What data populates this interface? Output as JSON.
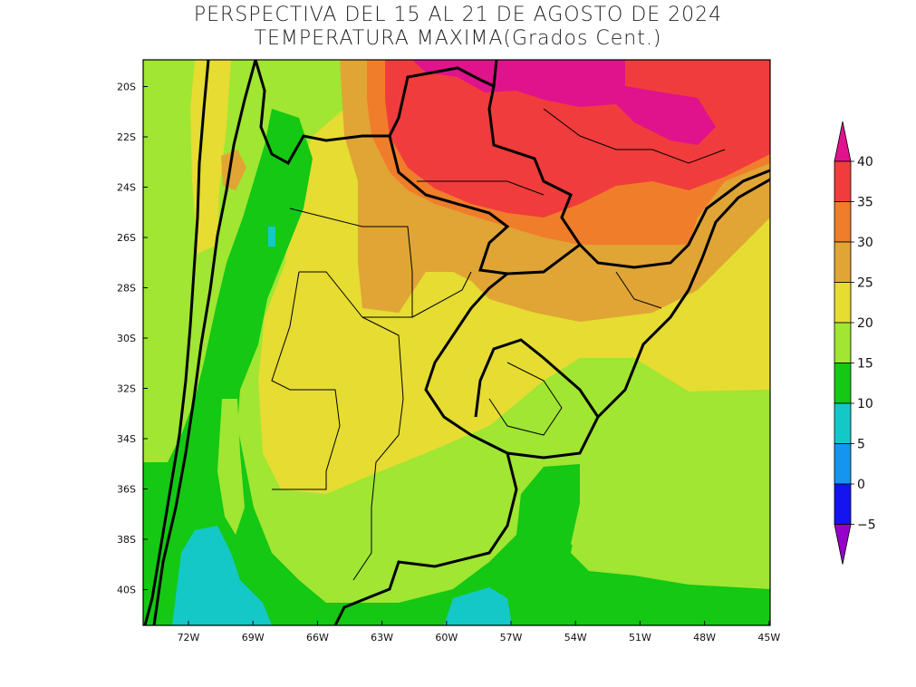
{
  "title": {
    "line1": "PERSPECTIVA DEL 15 AL 21 DE AGOSTO DE 2024",
    "line2": "TEMPERATURA MAXIMA(Grados Cent.)"
  },
  "map": {
    "lat_labels": [
      "20S",
      "22S",
      "24S",
      "26S",
      "28S",
      "30S",
      "32S",
      "34S",
      "36S",
      "38S",
      "40S"
    ],
    "lon_labels": [
      "72W",
      "69W",
      "66W",
      "63W",
      "60W",
      "57W",
      "54W",
      "51W",
      "48W",
      "45W"
    ]
  },
  "colorbar": {
    "labels": [
      "40",
      "35",
      "30",
      "25",
      "20",
      "15",
      "10",
      "5",
      "0",
      "−5"
    ],
    "colors": [
      "#e0138c",
      "#f03c3c",
      "#f07d2a",
      "#e0a535",
      "#e6dc32",
      "#a0e632",
      "#14c814",
      "#14c8c8",
      "#1496f0",
      "#1414f0",
      "#9600c8"
    ]
  }
}
